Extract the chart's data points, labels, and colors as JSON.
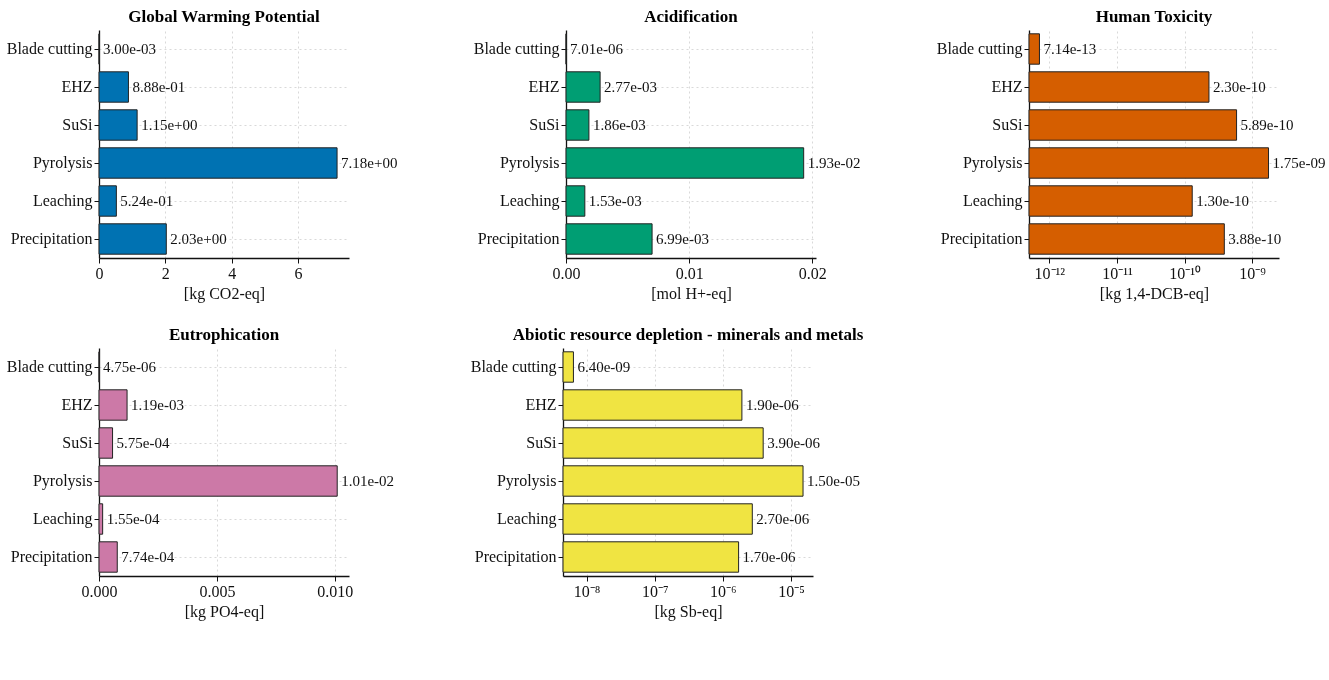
{
  "chart_data": [
    {
      "type": "bar",
      "orientation": "horizontal",
      "title": "Global Warming Potential",
      "xlabel": "[kg CO2-eq]",
      "categories": [
        "Blade cutting",
        "EHZ",
        "SuSi",
        "Pyrolysis",
        "Leaching",
        "Precipitation"
      ],
      "values": [
        0.003,
        0.888,
        1.15,
        7.18,
        0.524,
        2.03
      ],
      "value_labels": [
        "3.00e-03",
        "8.88e-01",
        "1.15e+00",
        "7.18e+00",
        "5.24e-01",
        "2.03e+00"
      ],
      "color": "#0072b2",
      "xlim": [
        0,
        7.54
      ],
      "xticks": [
        0,
        2,
        4,
        6
      ],
      "grid": true
    },
    {
      "type": "bar",
      "orientation": "horizontal",
      "title": "Acidification",
      "xlabel": "[mol H+-eq]",
      "categories": [
        "Blade cutting",
        "EHZ",
        "SuSi",
        "Pyrolysis",
        "Leaching",
        "Precipitation"
      ],
      "values": [
        7.01e-06,
        0.00277,
        0.00186,
        0.0193,
        0.00153,
        0.00699
      ],
      "value_labels": [
        "7.01e-06",
        "2.77e-03",
        "1.86e-03",
        "1.93e-02",
        "1.53e-03",
        "6.99e-03"
      ],
      "color": "#009e73",
      "xlim": [
        0,
        0.0203
      ],
      "xticks": [
        {
          "value": 0,
          "label": "0.00"
        },
        {
          "value": 0.01,
          "label": "0.01"
        },
        {
          "value": 0.02,
          "label": "0.02"
        }
      ],
      "grid": true
    },
    {
      "type": "bar",
      "orientation": "horizontal",
      "title": "Human Toxicity",
      "xlabel": "[kg 1,4-DCB-eq]",
      "categories": [
        "Blade cutting",
        "EHZ",
        "SuSi",
        "Pyrolysis",
        "Leaching",
        "Precipitation"
      ],
      "values": [
        7.14e-13,
        2.3e-10,
        5.89e-10,
        1.75e-09,
        1.3e-10,
        3.88e-10
      ],
      "value_labels": [
        "7.14e-13",
        "2.30e-10",
        "5.89e-10",
        "1.75e-09",
        "1.30e-10",
        "3.88e-10"
      ],
      "color": "#d55e00",
      "log": "x",
      "xlim": [
        5e-13,
        2.5e-09
      ],
      "xticks": [
        {
          "value": 1e-12,
          "label": "10⁻¹²"
        },
        {
          "value": 1e-11,
          "label": "10⁻¹¹"
        },
        {
          "value": 1e-10,
          "label": "10⁻¹⁰"
        },
        {
          "value": 1e-09,
          "label": "10⁻⁹"
        }
      ],
      "grid": true
    },
    {
      "type": "bar",
      "orientation": "horizontal",
      "title": "Eutrophication",
      "xlabel": "[kg PO4-eq]",
      "categories": [
        "Blade cutting",
        "EHZ",
        "SuSi",
        "Pyrolysis",
        "Leaching",
        "Precipitation"
      ],
      "values": [
        4.75e-06,
        0.00119,
        0.000575,
        0.0101,
        0.000155,
        0.000774
      ],
      "value_labels": [
        "4.75e-06",
        "1.19e-03",
        "5.75e-04",
        "1.01e-02",
        "1.55e-04",
        "7.74e-04"
      ],
      "color": "#cc79a7",
      "xlim": [
        0,
        0.0106
      ],
      "xticks": [
        {
          "value": 0,
          "label": "0.000"
        },
        {
          "value": 0.005,
          "label": "0.005"
        },
        {
          "value": 0.01,
          "label": "0.010"
        }
      ],
      "grid": true
    },
    {
      "type": "bar",
      "orientation": "horizontal",
      "title": "Abiotic resource depletion - minerals and metals",
      "xlabel": "[kg Sb-eq]",
      "categories": [
        "Blade cutting",
        "EHZ",
        "SuSi",
        "Pyrolysis",
        "Leaching",
        "Precipitation"
      ],
      "values": [
        6.4e-09,
        1.9e-06,
        3.9e-06,
        1.5e-05,
        2.7e-06,
        1.7e-06
      ],
      "value_labels": [
        "6.40e-09",
        "1.90e-06",
        "3.90e-06",
        "1.50e-05",
        "2.70e-06",
        "1.70e-06"
      ],
      "color": "#f0e442",
      "log": "x",
      "xlim": [
        4.5e-09,
        2.1e-05
      ],
      "xticks": [
        {
          "value": 1e-08,
          "label": "10⁻⁸"
        },
        {
          "value": 1e-07,
          "label": "10⁻⁷"
        },
        {
          "value": 1e-06,
          "label": "10⁻⁶"
        },
        {
          "value": 1e-05,
          "label": "10⁻⁵"
        }
      ],
      "grid": true
    }
  ]
}
